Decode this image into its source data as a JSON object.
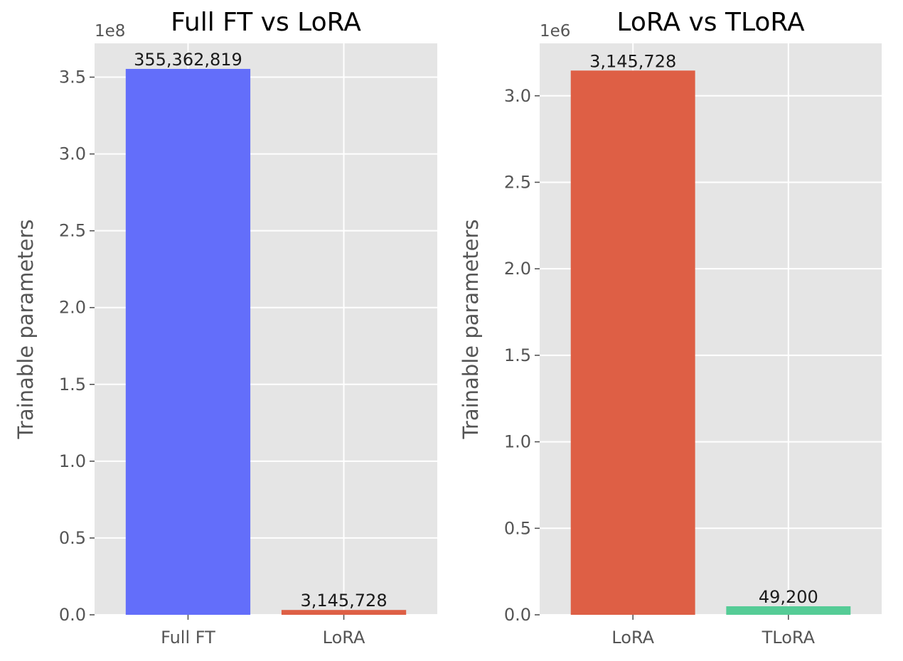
{
  "chart_data": [
    {
      "type": "bar",
      "title": "Full FT vs LoRA",
      "xlabel": "",
      "ylabel": "Trainable parameters",
      "categories": [
        "Full FT",
        "LoRA"
      ],
      "values": [
        355362819,
        3145728
      ],
      "value_labels": [
        "355,362,819",
        "3,145,728"
      ],
      "colors": [
        "#636EFA",
        "#DE5F45"
      ],
      "ylim": [
        0,
        372000000
      ],
      "offset_text": "1e8",
      "yticks": [
        0,
        50000000,
        100000000,
        150000000,
        200000000,
        250000000,
        300000000,
        350000000
      ],
      "ytick_labels": [
        "0.0",
        "0.5",
        "1.0",
        "1.5",
        "2.0",
        "2.5",
        "3.0",
        "3.5"
      ],
      "grid": true,
      "style": "ggplot"
    },
    {
      "type": "bar",
      "title": "LoRA vs TLoRA",
      "xlabel": "",
      "ylabel": "Trainable parameters",
      "categories": [
        "LoRA",
        "TLoRA"
      ],
      "values": [
        3145728,
        49200
      ],
      "value_labels": [
        "3,145,728",
        "49,200"
      ],
      "colors": [
        "#DE5F45",
        "#55CC96"
      ],
      "ylim": [
        0,
        3303014
      ],
      "offset_text": "1e6",
      "yticks": [
        0,
        500000,
        1000000,
        1500000,
        2000000,
        2500000,
        3000000
      ],
      "ytick_labels": [
        "0.0",
        "0.5",
        "1.0",
        "1.5",
        "2.0",
        "2.5",
        "3.0"
      ],
      "grid": true,
      "style": "ggplot"
    }
  ]
}
